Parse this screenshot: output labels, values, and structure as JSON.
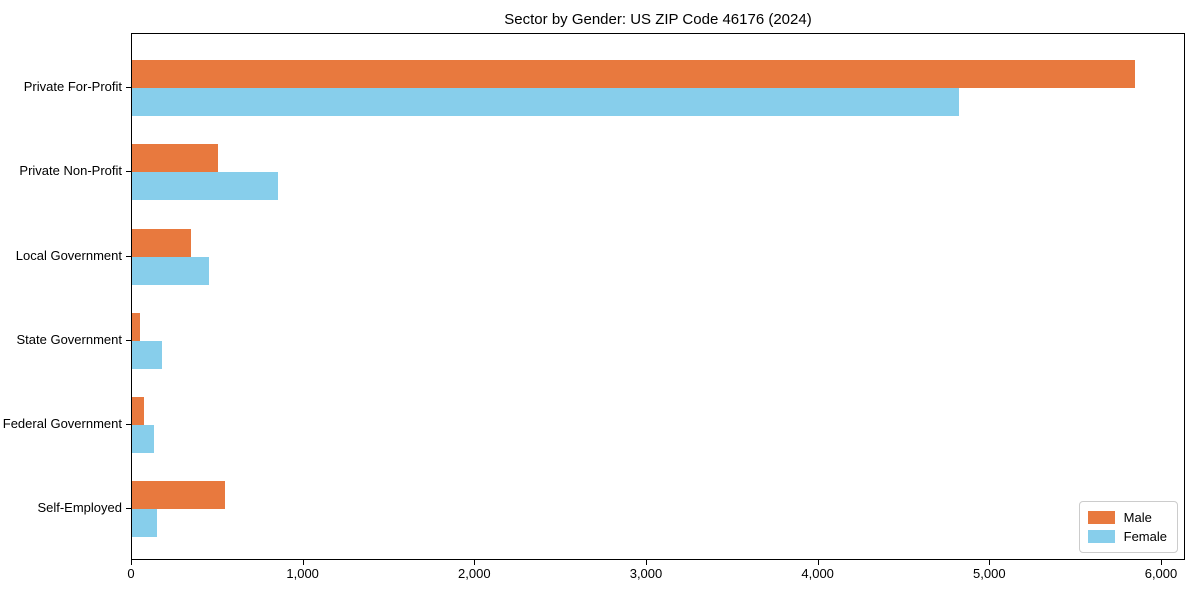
{
  "title": "Sector by Gender: US ZIP Code 46176 (2024)",
  "chart_data": {
    "type": "bar",
    "orientation": "horizontal",
    "title": "Sector by Gender: US ZIP Code 46176 (2024)",
    "categories": [
      "Private For-Profit",
      "Private Non-Profit",
      "Local Government",
      "State Government",
      "Federal Government",
      "Self-Employed"
    ],
    "series": [
      {
        "name": "Male",
        "color": "#e8793e",
        "values": [
          5845,
          500,
          345,
          45,
          70,
          540
        ]
      },
      {
        "name": "Female",
        "color": "#87ceeb",
        "values": [
          4815,
          850,
          450,
          175,
          130,
          145
        ]
      }
    ],
    "xlabel": "",
    "ylabel": "",
    "xlim": [
      0,
      6000
    ],
    "xticks": [
      0,
      1000,
      2000,
      3000,
      4000,
      5000,
      6000
    ],
    "xtick_labels": [
      "0",
      "1,000",
      "2,000",
      "3,000",
      "4,000",
      "5,000",
      "6,000"
    ],
    "grid": false,
    "legend_position": "lower right"
  }
}
